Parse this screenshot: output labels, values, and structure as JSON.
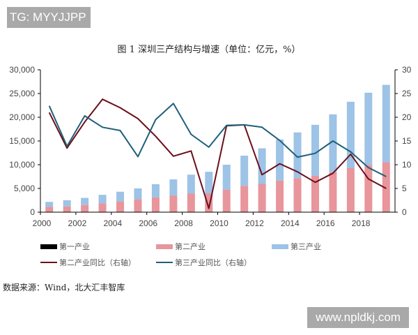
{
  "watermarks": {
    "top": "TG: MYYJJPP",
    "bottom": "www.npldkj.com"
  },
  "title": "图 1 深圳三产结构与增速（单位：亿元，%）",
  "source": "数据来源：Wind，北大汇丰智库",
  "colors": {
    "primary": "#000000",
    "secondary": "#e8959b",
    "tertiary": "#9dc3e6",
    "secondary_growth": "#6b0f1a",
    "tertiary_growth": "#1f5f7a"
  },
  "legend": [
    {
      "label": "第一产业",
      "type": "bar",
      "color": "#000000"
    },
    {
      "label": "第二产业",
      "type": "bar",
      "color": "#e8959b"
    },
    {
      "label": "第三产业",
      "type": "bar",
      "color": "#9dc3e6"
    },
    {
      "label": "第二产业同比（右轴）",
      "type": "line",
      "color": "#6b0f1a"
    },
    {
      "label": "第三产业同比（右轴）",
      "type": "line",
      "color": "#1f5f7a"
    }
  ],
  "chart_data": {
    "type": "bar",
    "title": "图 1 深圳三产结构与增速（单位：亿元，%）",
    "xlabel": "",
    "ylabel": "亿元",
    "y2label": "%",
    "ylim": [
      0,
      30000
    ],
    "y2lim": [
      0,
      30
    ],
    "y_ticks": [
      "0",
      "5,000",
      "10,000",
      "15,000",
      "20,000",
      "25,000",
      "30,000"
    ],
    "y2_ticks": [
      "0",
      "5",
      "10",
      "15",
      "20",
      "25",
      "30"
    ],
    "x_tick_labels": [
      "2000",
      "2002",
      "2004",
      "2006",
      "2008",
      "2010",
      "2012",
      "2014",
      "2016",
      "2018"
    ],
    "grid": false,
    "legend_position": "bottom",
    "categories": [
      "2000",
      "2001",
      "2002",
      "2003",
      "2004",
      "2005",
      "2006",
      "2007",
      "2008",
      "2009",
      "2010",
      "2011",
      "2012",
      "2013",
      "2014",
      "2015",
      "2016",
      "2017",
      "2018",
      "2019"
    ],
    "series": [
      {
        "name": "第一产业",
        "type": "bar",
        "stacked": true,
        "values": [
          16,
          17,
          9,
          8,
          7,
          10,
          7,
          7,
          7,
          7,
          6,
          7,
          5,
          5,
          5,
          6,
          7,
          18,
          22,
          25
        ]
      },
      {
        "name": "第二产业",
        "type": "bar",
        "stacked": true,
        "values": [
          1100,
          1200,
          1500,
          1850,
          2250,
          2700,
          3100,
          3450,
          3950,
          3950,
          4750,
          5550,
          5950,
          6650,
          7150,
          7650,
          8400,
          9250,
          9950,
          10500
        ]
      },
      {
        "name": "第三产业",
        "type": "bar",
        "stacked": true,
        "values": [
          1050,
          1300,
          1500,
          1800,
          2050,
          2300,
          2800,
          3450,
          3950,
          4550,
          5250,
          6350,
          7500,
          8650,
          9650,
          10750,
          12200,
          14000,
          15200,
          16300
        ]
      },
      {
        "name": "第二产业同比（右轴）",
        "type": "line",
        "axis": "right",
        "values": [
          21.0,
          13.5,
          19.0,
          23.8,
          22.0,
          19.7,
          16.0,
          11.8,
          12.9,
          0.8,
          18.2,
          18.4,
          7.9,
          10.2,
          8.5,
          6.3,
          8.2,
          12.2,
          7.0,
          5.0
        ]
      },
      {
        "name": "第三产业同比（右轴）",
        "type": "line",
        "axis": "right",
        "values": [
          22.4,
          13.9,
          20.3,
          17.9,
          17.2,
          11.7,
          19.5,
          22.9,
          16.4,
          13.7,
          18.3,
          18.4,
          17.9,
          15.1,
          11.6,
          12.4,
          15.0,
          12.7,
          9.4,
          7.5
        ]
      }
    ]
  }
}
